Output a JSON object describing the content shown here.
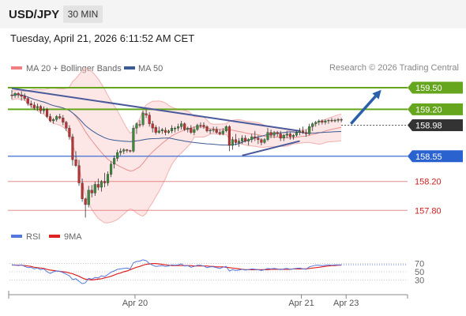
{
  "header": {
    "symbol": "USD/JPY",
    "timeframe": "30 MIN"
  },
  "datetime": "Tuesday, April 21, 2026 6:11:52 AM CET",
  "credit": "Research © 2026 Trading Central",
  "colors": {
    "resistance": "#66a61e",
    "support": "#e06060",
    "current": "#333333",
    "ma50": "#3a5b94",
    "bollinger": "#f8c8c8",
    "rsi": "#5577dd",
    "rsi_ma": "#dd2222",
    "trend": "#4a5a9a",
    "forecast_arrow": "#2a5faa",
    "up_candle": "#3c8a3c",
    "down_candle": "#c03030"
  },
  "chart_data": [
    {
      "type": "candlestick",
      "legend": [
        {
          "name": "MA 20 + Bollinger Bands",
          "color": "#f08080"
        },
        {
          "name": "MA 50",
          "color": "#3a5b94"
        }
      ],
      "ylim": [
        157.65,
        159.62
      ],
      "x_tick_labels": [
        "Apr 20",
        "Apr 21",
        "Apr 23"
      ],
      "x_ticks": [
        {
          "label": "Apr 20",
          "index": 38.5
        },
        {
          "label": "Apr 21",
          "index": 90.5
        },
        {
          "label": "Apr 23",
          "index": 104.5
        }
      ],
      "levels": [
        {
          "value": 159.5,
          "label": "159.50",
          "kind": "resistance"
        },
        {
          "value": 159.2,
          "label": "159.20",
          "kind": "resistance"
        },
        {
          "value": 158.98,
          "label": "158.98",
          "kind": "current"
        },
        {
          "value": 158.55,
          "label": "158.55",
          "kind": "pivot"
        },
        {
          "value": 158.2,
          "label": "158.20",
          "kind": "support"
        },
        {
          "value": 157.8,
          "label": "157.80",
          "kind": "support"
        }
      ],
      "ohlc": [
        [
          159.4,
          159.47,
          159.34,
          159.39
        ],
        [
          159.39,
          159.44,
          159.36,
          159.42
        ],
        [
          159.42,
          159.44,
          159.36,
          159.4
        ],
        [
          159.4,
          159.45,
          159.32,
          159.38
        ],
        [
          159.38,
          159.42,
          159.32,
          159.35
        ],
        [
          159.35,
          159.37,
          159.25,
          159.28
        ],
        [
          159.28,
          159.32,
          159.22,
          159.26
        ],
        [
          159.26,
          159.3,
          159.19,
          159.22
        ],
        [
          159.22,
          159.28,
          159.18,
          159.24
        ],
        [
          159.24,
          159.26,
          159.14,
          159.18
        ],
        [
          159.18,
          159.24,
          159.14,
          159.2
        ],
        [
          159.2,
          159.22,
          159.08,
          159.1
        ],
        [
          159.1,
          159.14,
          159.02,
          159.04
        ],
        [
          159.04,
          159.08,
          159.0,
          159.06
        ],
        [
          159.06,
          159.12,
          159.03,
          159.1
        ],
        [
          159.1,
          159.14,
          159.06,
          159.08
        ],
        [
          159.08,
          159.12,
          158.98,
          159.02
        ],
        [
          159.02,
          159.04,
          158.9,
          158.94
        ],
        [
          158.94,
          158.98,
          158.78,
          158.82
        ],
        [
          158.82,
          158.86,
          158.42,
          158.5
        ],
        [
          158.5,
          158.62,
          158.4,
          158.42
        ],
        [
          158.42,
          158.5,
          158.14,
          158.18
        ],
        [
          158.18,
          158.24,
          157.92,
          157.96
        ],
        [
          157.96,
          157.98,
          157.7,
          157.88
        ],
        [
          157.88,
          158.14,
          157.84,
          158.08
        ],
        [
          158.08,
          158.15,
          157.98,
          158.04
        ],
        [
          158.04,
          158.2,
          158.0,
          158.16
        ],
        [
          158.16,
          158.24,
          158.08,
          158.12
        ],
        [
          158.12,
          158.22,
          158.06,
          158.2
        ],
        [
          158.2,
          158.32,
          158.12,
          158.18
        ],
        [
          158.18,
          158.34,
          158.14,
          158.3
        ],
        [
          158.3,
          158.48,
          158.26,
          158.44
        ],
        [
          158.44,
          158.56,
          158.38,
          158.52
        ],
        [
          158.52,
          158.64,
          158.48,
          158.6
        ],
        [
          158.6,
          158.66,
          158.56,
          158.62
        ],
        [
          158.62,
          158.66,
          158.58,
          158.64
        ],
        [
          158.64,
          158.65,
          158.6,
          158.63
        ],
        [
          158.63,
          158.64,
          158.6,
          158.62
        ],
        [
          158.62,
          158.98,
          158.6,
          158.94
        ],
        [
          158.94,
          159.02,
          158.86,
          159.0
        ],
        [
          158.99,
          159.05,
          158.95,
          158.98
        ],
        [
          158.99,
          159.18,
          158.96,
          159.15
        ],
        [
          159.14,
          159.2,
          159.08,
          159.12
        ],
        [
          159.12,
          159.16,
          158.96,
          159.0
        ],
        [
          159.0,
          159.04,
          158.88,
          158.94
        ],
        [
          158.95,
          158.98,
          158.85,
          158.88
        ],
        [
          158.88,
          158.96,
          158.86,
          158.9
        ],
        [
          158.9,
          158.94,
          158.86,
          158.92
        ],
        [
          158.91,
          158.95,
          158.84,
          158.88
        ],
        [
          158.88,
          158.92,
          158.86,
          158.9
        ],
        [
          158.9,
          158.98,
          158.87,
          158.94
        ],
        [
          158.93,
          158.96,
          158.88,
          158.94
        ],
        [
          158.94,
          159.0,
          158.9,
          158.96
        ],
        [
          158.96,
          159.04,
          158.92,
          159.0
        ],
        [
          159.0,
          159.02,
          158.9,
          158.92
        ],
        [
          158.92,
          158.96,
          158.88,
          158.94
        ],
        [
          158.94,
          158.98,
          158.86,
          158.88
        ],
        [
          158.88,
          158.96,
          158.84,
          158.92
        ],
        [
          158.92,
          159.0,
          158.9,
          158.98
        ],
        [
          158.98,
          159.02,
          158.94,
          158.97
        ],
        [
          158.98,
          159.02,
          158.93,
          158.96
        ],
        [
          158.96,
          158.98,
          158.88,
          158.9
        ],
        [
          158.91,
          158.93,
          158.86,
          158.91
        ],
        [
          158.91,
          158.96,
          158.88,
          158.92
        ],
        [
          158.92,
          158.96,
          158.86,
          158.88
        ],
        [
          158.88,
          158.92,
          158.84,
          158.86
        ],
        [
          158.86,
          158.94,
          158.84,
          158.9
        ],
        [
          158.9,
          158.98,
          158.88,
          158.96
        ],
        [
          158.96,
          158.98,
          158.62,
          158.7
        ],
        [
          158.7,
          158.82,
          158.64,
          158.78
        ],
        [
          158.78,
          158.86,
          158.7,
          158.74
        ],
        [
          158.74,
          158.8,
          158.68,
          158.76
        ],
        [
          158.76,
          158.84,
          158.72,
          158.8
        ],
        [
          158.8,
          158.84,
          158.74,
          158.76
        ],
        [
          158.76,
          158.8,
          158.7,
          158.78
        ],
        [
          158.78,
          158.86,
          158.74,
          158.82
        ],
        [
          158.82,
          158.9,
          158.76,
          158.8
        ],
        [
          158.8,
          158.84,
          158.72,
          158.78
        ],
        [
          158.78,
          158.8,
          158.7,
          158.74
        ],
        [
          158.74,
          158.8,
          158.72,
          158.78
        ],
        [
          158.78,
          158.94,
          158.76,
          158.88
        ],
        [
          158.88,
          158.92,
          158.8,
          158.84
        ],
        [
          158.84,
          158.9,
          158.8,
          158.88
        ],
        [
          158.88,
          158.9,
          158.82,
          158.86
        ],
        [
          158.86,
          158.9,
          158.76,
          158.8
        ],
        [
          158.8,
          158.86,
          158.76,
          158.84
        ],
        [
          158.84,
          158.9,
          158.8,
          158.86
        ],
        [
          158.86,
          158.88,
          158.78,
          158.82
        ],
        [
          158.82,
          158.86,
          158.78,
          158.84
        ],
        [
          158.84,
          158.9,
          158.82,
          158.88
        ],
        [
          158.88,
          158.94,
          158.84,
          158.9
        ],
        [
          158.9,
          158.96,
          158.86,
          158.88
        ],
        [
          158.88,
          158.92,
          158.82,
          158.86
        ],
        [
          158.86,
          159.0,
          158.84,
          158.96
        ],
        [
          158.96,
          159.02,
          158.9,
          159.0
        ],
        [
          159.0,
          159.04,
          158.96,
          159.02
        ],
        [
          159.02,
          159.06,
          158.98,
          159.04
        ],
        [
          159.04,
          159.06,
          158.99,
          159.02
        ],
        [
          159.02,
          159.06,
          158.99,
          159.04
        ],
        [
          159.04,
          159.06,
          159.0,
          159.05
        ],
        [
          159.05,
          159.08,
          159.02,
          159.04
        ],
        [
          159.04,
          159.07,
          159.02,
          159.05
        ],
        [
          159.05,
          159.08,
          159.02,
          159.06
        ],
        [
          159.06,
          159.08,
          159.02,
          159.05
        ]
      ],
      "trendlines": [
        {
          "from": [
            0,
            159.49
          ],
          "to": [
            90,
            158.9
          ],
          "color": "#4a5a9a"
        },
        {
          "from": [
            72,
            158.56
          ],
          "to": [
            90,
            158.76
          ],
          "color": "#4a5a9a"
        }
      ],
      "forecast_arrow": {
        "from": [
          106,
          159.0
        ],
        "to": [
          115,
          159.47
        ]
      }
    },
    {
      "type": "line",
      "legend": [
        {
          "name": "RSI",
          "color": "#5577dd"
        },
        {
          "name": "9MA",
          "color": "#dd2222"
        }
      ],
      "ylim": [
        0,
        100
      ],
      "y_ticks": [
        70,
        50,
        30
      ],
      "series": [
        {
          "name": "RSI",
          "values": [
            66,
            67,
            65,
            67,
            63,
            60,
            61,
            57,
            59,
            55,
            57,
            50,
            46,
            50,
            52,
            51,
            48,
            44,
            40,
            31,
            33,
            27,
            21,
            23,
            34,
            32,
            36,
            35,
            40,
            38,
            43,
            49,
            52,
            56,
            57,
            58,
            59,
            57,
            72,
            75,
            76,
            79,
            77,
            70,
            66,
            63,
            64,
            65,
            63,
            64,
            67,
            66,
            67,
            69,
            64,
            65,
            61,
            63,
            66,
            66,
            64,
            60,
            62,
            62,
            60,
            58,
            61,
            63,
            52,
            55,
            53,
            54,
            56,
            54,
            55,
            57,
            56,
            55,
            53,
            55,
            58,
            57,
            58,
            57,
            55,
            57,
            58,
            56,
            57,
            58,
            59,
            57,
            56,
            62,
            64,
            66,
            66,
            65,
            66,
            67,
            66,
            67,
            67,
            67
          ]
        },
        {
          "name": "9MA",
          "values": [
            67,
            66,
            66,
            66,
            65,
            64,
            63,
            61,
            60,
            59,
            58,
            56,
            54,
            53,
            52,
            51,
            50,
            49,
            47,
            45,
            42,
            39,
            35,
            32,
            31,
            30,
            31,
            32,
            33,
            35,
            37,
            39,
            42,
            45,
            47,
            50,
            52,
            55,
            58,
            61,
            63,
            66,
            68,
            69,
            70,
            70,
            69,
            68,
            67,
            66,
            65,
            65,
            65,
            65,
            65,
            65,
            65,
            64,
            64,
            64,
            64,
            64,
            63,
            63,
            62,
            62,
            62,
            61,
            60,
            59,
            58,
            57,
            56,
            55,
            55,
            55,
            55,
            55,
            55,
            55,
            55,
            56,
            56,
            56,
            56,
            56,
            56,
            56,
            57,
            57,
            57,
            57,
            57,
            58,
            59,
            60,
            61,
            62,
            63,
            64,
            65,
            65,
            66,
            66
          ]
        }
      ]
    }
  ]
}
